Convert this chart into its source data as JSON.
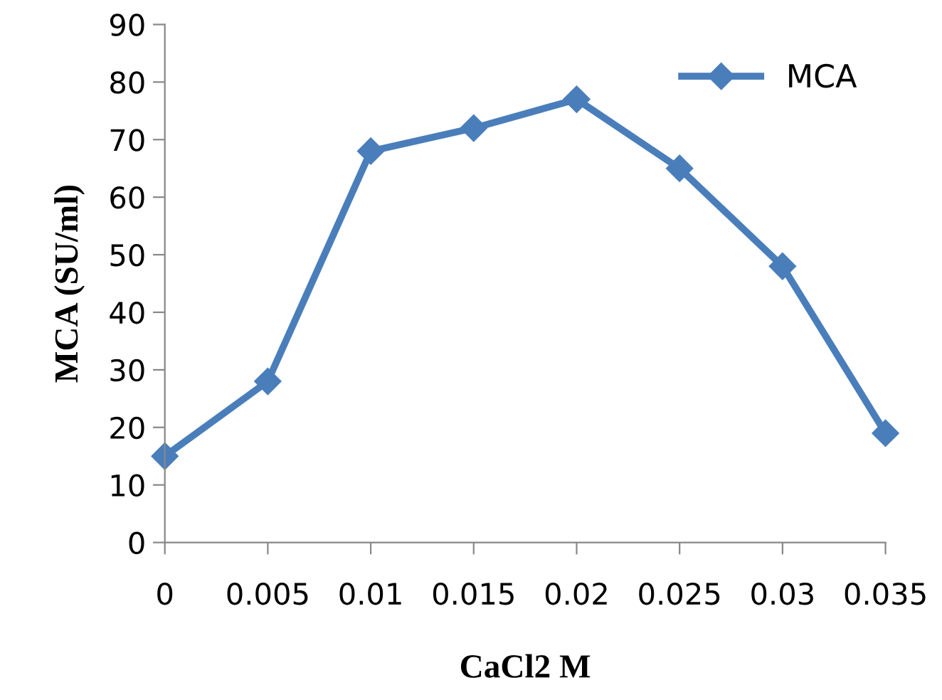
{
  "chart_data": {
    "type": "line",
    "xlabel": "CaCl2 M",
    "ylabel": "MCA (SU/ml)",
    "x": [
      0,
      0.005,
      0.01,
      0.015,
      0.02,
      0.025,
      0.03,
      0.035
    ],
    "series": [
      {
        "name": "MCA",
        "color": "#4a7ebb",
        "values": [
          15,
          28,
          68,
          72,
          77,
          65,
          48,
          19
        ]
      }
    ],
    "xlim": [
      0,
      0.035
    ],
    "xticks": [
      0,
      0.005,
      0.01,
      0.015,
      0.02,
      0.025,
      0.03,
      0.035
    ],
    "ylim": [
      0,
      90
    ],
    "yticks": [
      0,
      10,
      20,
      30,
      40,
      50,
      60,
      70,
      80,
      90
    ],
    "marker": "diamond",
    "line_style": "solid",
    "grid": false,
    "legend": "top right"
  }
}
